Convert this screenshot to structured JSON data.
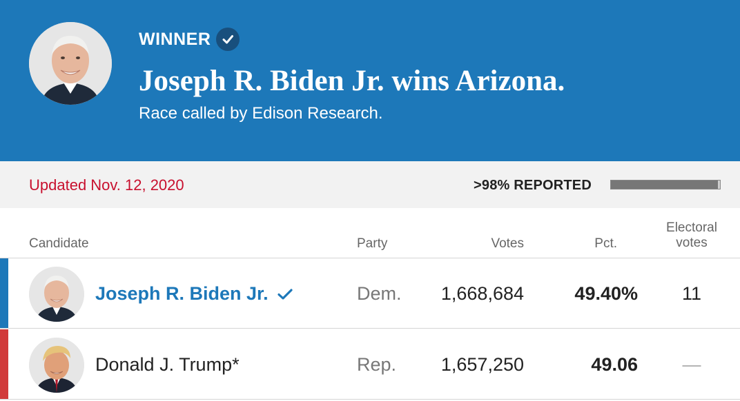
{
  "banner": {
    "winner_label": "WINNER",
    "headline": "Joseph R. Biden Jr. wins Arizona.",
    "subline": "Race called by Edison Research.",
    "photo_icon": "biden-portrait-icon"
  },
  "status": {
    "updated": "Updated Nov. 12, 2020",
    "reported_label": ">98% REPORTED",
    "reported_fraction": 0.98
  },
  "table": {
    "headers": {
      "candidate": "Candidate",
      "party": "Party",
      "votes": "Votes",
      "pct": "Pct.",
      "electoral_line1": "Electoral",
      "electoral_line2": "votes"
    },
    "rows": [
      {
        "name": "Joseph R. Biden Jr.",
        "party": "Dem.",
        "votes": "1,668,684",
        "pct": "49.40%",
        "electoral": "11",
        "winner": true,
        "stripe_color": "#1d78b9",
        "icon": "biden-avatar-icon"
      },
      {
        "name": "Donald J. Trump*",
        "party": "Rep.",
        "votes": "1,657,250",
        "pct": "49.06",
        "electoral": "—",
        "winner": false,
        "stripe_color": "#d13a3a",
        "icon": "trump-avatar-icon"
      }
    ]
  },
  "colors": {
    "banner_blue": "#1d78b9",
    "updated_red": "#c8102e",
    "dem_blue": "#1d78b9",
    "rep_red": "#d13a3a"
  }
}
